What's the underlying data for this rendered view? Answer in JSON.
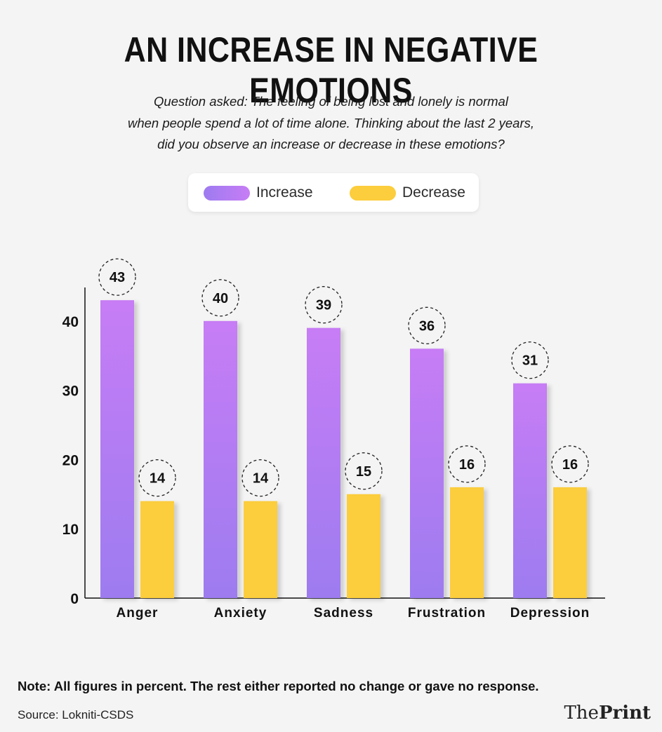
{
  "title": "AN INCREASE IN NEGATIVE EMOTIONS",
  "subtitle_lines": [
    "Question asked: The feeling of being lost and lonely is normal",
    "when people spend a lot of time alone. Thinking about the last 2 years,",
    "did you observe an increase or decrease in these emotions?"
  ],
  "note": "Note: All figures in percent. The rest either reported no change or gave no response.",
  "source": "Source: Lokniti-CSDS",
  "logo": {
    "part1": "The",
    "part2": "Print"
  },
  "colors": {
    "increase_top": "#c77df5",
    "increase_bottom": "#9d7bf0",
    "decrease": "#fccd3c"
  },
  "chart_data": {
    "type": "bar",
    "title": "AN INCREASE IN NEGATIVE EMOTIONS",
    "xlabel": "",
    "ylabel": "",
    "categories": [
      "Anger",
      "Anxiety",
      "Sadness",
      "Frustration",
      "Depression"
    ],
    "series": [
      {
        "name": "Increase",
        "values": [
          43,
          40,
          39,
          36,
          31
        ]
      },
      {
        "name": "Decrease",
        "values": [
          14,
          14,
          15,
          16,
          16
        ]
      }
    ],
    "yticks": [
      0,
      10,
      20,
      30,
      40
    ],
    "ylim": [
      0,
      45
    ],
    "grid": false,
    "legend": "top-center",
    "data_labels": true
  }
}
